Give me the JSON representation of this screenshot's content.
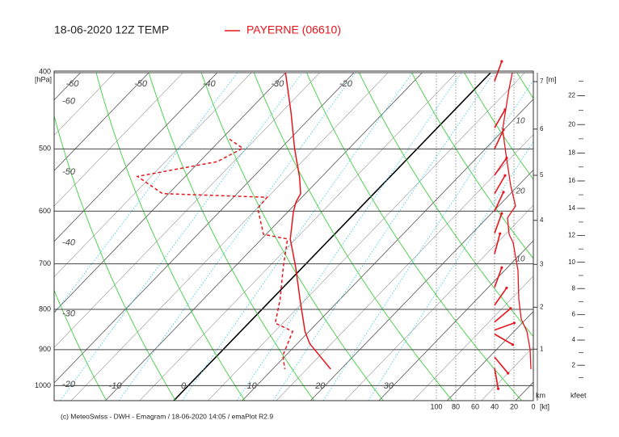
{
  "chart_data": {
    "type": "emagram",
    "title": "18-06-2020 12Z TEMP",
    "series": [
      {
        "name": "PAYERNE (06610)",
        "color": "#e8141b",
        "dash": false,
        "pressure": [
          400,
          450,
          500,
          544,
          570,
          584,
          601,
          651,
          706,
          776,
          853,
          884,
          953
        ],
        "temperature": [
          -30.0,
          -23.5,
          -17.9,
          -13.1,
          -10.7,
          -10.2,
          -9.2,
          -5.8,
          -1.1,
          4.1,
          9.4,
          11.8,
          18.5
        ]
      },
      {
        "color": "#e8141b",
        "dash": true,
        "pressure": [
          486,
          499,
          519,
          542,
          570,
          576,
          595,
          642,
          651,
          706,
          776,
          833,
          853,
          916,
          953
        ],
        "temperature": [
          -28.8,
          -25.6,
          -27.4,
          -37.0,
          -30.9,
          -15.1,
          -14.9,
          -10.4,
          -6.2,
          -2.9,
          1.2,
          3.9,
          7.6,
          9.6,
          11.8
        ]
      }
    ],
    "ylabel": "[hPa]",
    "ylim": [
      1045,
      400
    ],
    "yticks": [
      400,
      500,
      600,
      700,
      800,
      900,
      1000
    ],
    "log_y": true,
    "xlim": [
      -17.5,
      52.6
    ],
    "xticks": [
      -10,
      0,
      10,
      20,
      30
    ],
    "skew_angle": 44,
    "isotherm_labels_top": [
      -60,
      -50,
      -40,
      -30,
      -20
    ],
    "isotherm_labels_left": [
      -60,
      -50,
      -40,
      -30,
      -20
    ],
    "wind": {
      "color": "#e8141b",
      "pressure": [
        400,
        419,
        472,
        507,
        557,
        591,
        612,
        642,
        658,
        714,
        776,
        823,
        853,
        899,
        953
      ],
      "speed": [
        21.7,
        25,
        31.7,
        28.3,
        23.3,
        18.3,
        26.7,
        25,
        20.8,
        15.8,
        15,
        12.5,
        6.7,
        3.3,
        2.5
      ]
    },
    "speed_labels": [
      "10",
      "20",
      "10"
    ],
    "barbs": {
      "pressure": [
        410,
        470,
        500,
        540,
        570,
        600,
        640,
        680,
        750,
        790,
        830,
        850,
        860,
        920,
        950
      ],
      "direction": [
        200,
        210,
        205,
        215,
        210,
        205,
        200,
        195,
        200,
        215,
        230,
        250,
        300,
        320,
        350
      ]
    },
    "x2lim": [
      100,
      0
    ],
    "x2ticks": [
      100,
      80,
      60,
      40,
      20,
      0
    ],
    "x2label": "[kt]",
    "height_label": "[m]",
    "km_ticks": [
      1,
      2,
      3,
      4,
      5,
      6,
      7
    ],
    "km_label": "km",
    "kfeet_ticks": [
      2,
      4,
      6,
      8,
      10,
      12,
      14,
      16,
      18,
      20,
      22
    ],
    "kfeet_label": "kfeet",
    "footer": "(c) MeteoSwiss - DWH - Emagram / 18-06-2020  14:05 / emaPlot R2.9"
  }
}
